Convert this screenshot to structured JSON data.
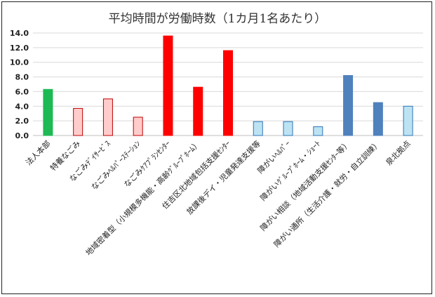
{
  "chart_data": {
    "type": "bar",
    "title": "平均時間が労働時数（1カ月1名あたり）",
    "xlabel": "",
    "ylabel": "",
    "ylim": [
      0,
      14
    ],
    "yticks": [
      "0.0",
      "2.0",
      "4.0",
      "6.0",
      "8.0",
      "10.0",
      "12.0",
      "14.0"
    ],
    "grid": true,
    "legend": "none",
    "categories": [
      "法人本部",
      "特養なごみ",
      "なごみﾃﾞｲｻｰﾋﾞｽ",
      "なごみﾍﾙﾊﾟｰｽﾃｰｼｮﾝ",
      "なごみｹｱﾌﾟﾗﾝｾﾝﾀｰ",
      "地域密着型（小規模多機能・高齢ｸﾞﾙｰﾌﾟﾎｰﾑ）",
      "住吉区北地域包括支援ｾﾝﾀｰ",
      "放課後デイ・児童発達支援等",
      "障がいﾍﾙﾊﾟｰ",
      "障がいｸﾞﾙｰﾌﾟﾎｰﾑ・ｼｮｰﾄ",
      "障がい相談（地域活動支援ｾﾝﾀｰ等）",
      "障がい通所（生活介護・就労・自立訓練）",
      "泉北拠点"
    ],
    "values": [
      6.3,
      3.7,
      5.0,
      2.5,
      13.6,
      6.6,
      11.6,
      1.9,
      1.9,
      1.2,
      8.2,
      4.5,
      4.0
    ],
    "bar_fills": [
      "#1db954",
      "#ffcccc",
      "#ffcccc",
      "#ffcccc",
      "#ff0000",
      "#ff0000",
      "#ff0000",
      "#bde3f2",
      "#bde3f2",
      "#bde3f2",
      "#4f81bd",
      "#4f81bd",
      "#bde3f2"
    ],
    "bar_strokes": [
      "#1db954",
      "#c00000",
      "#c00000",
      "#c00000",
      "#ff0000",
      "#ff0000",
      "#ff0000",
      "#2e75b6",
      "#2e75b6",
      "#2e75b6",
      "#4f81bd",
      "#4f81bd",
      "#2e75b6"
    ]
  }
}
